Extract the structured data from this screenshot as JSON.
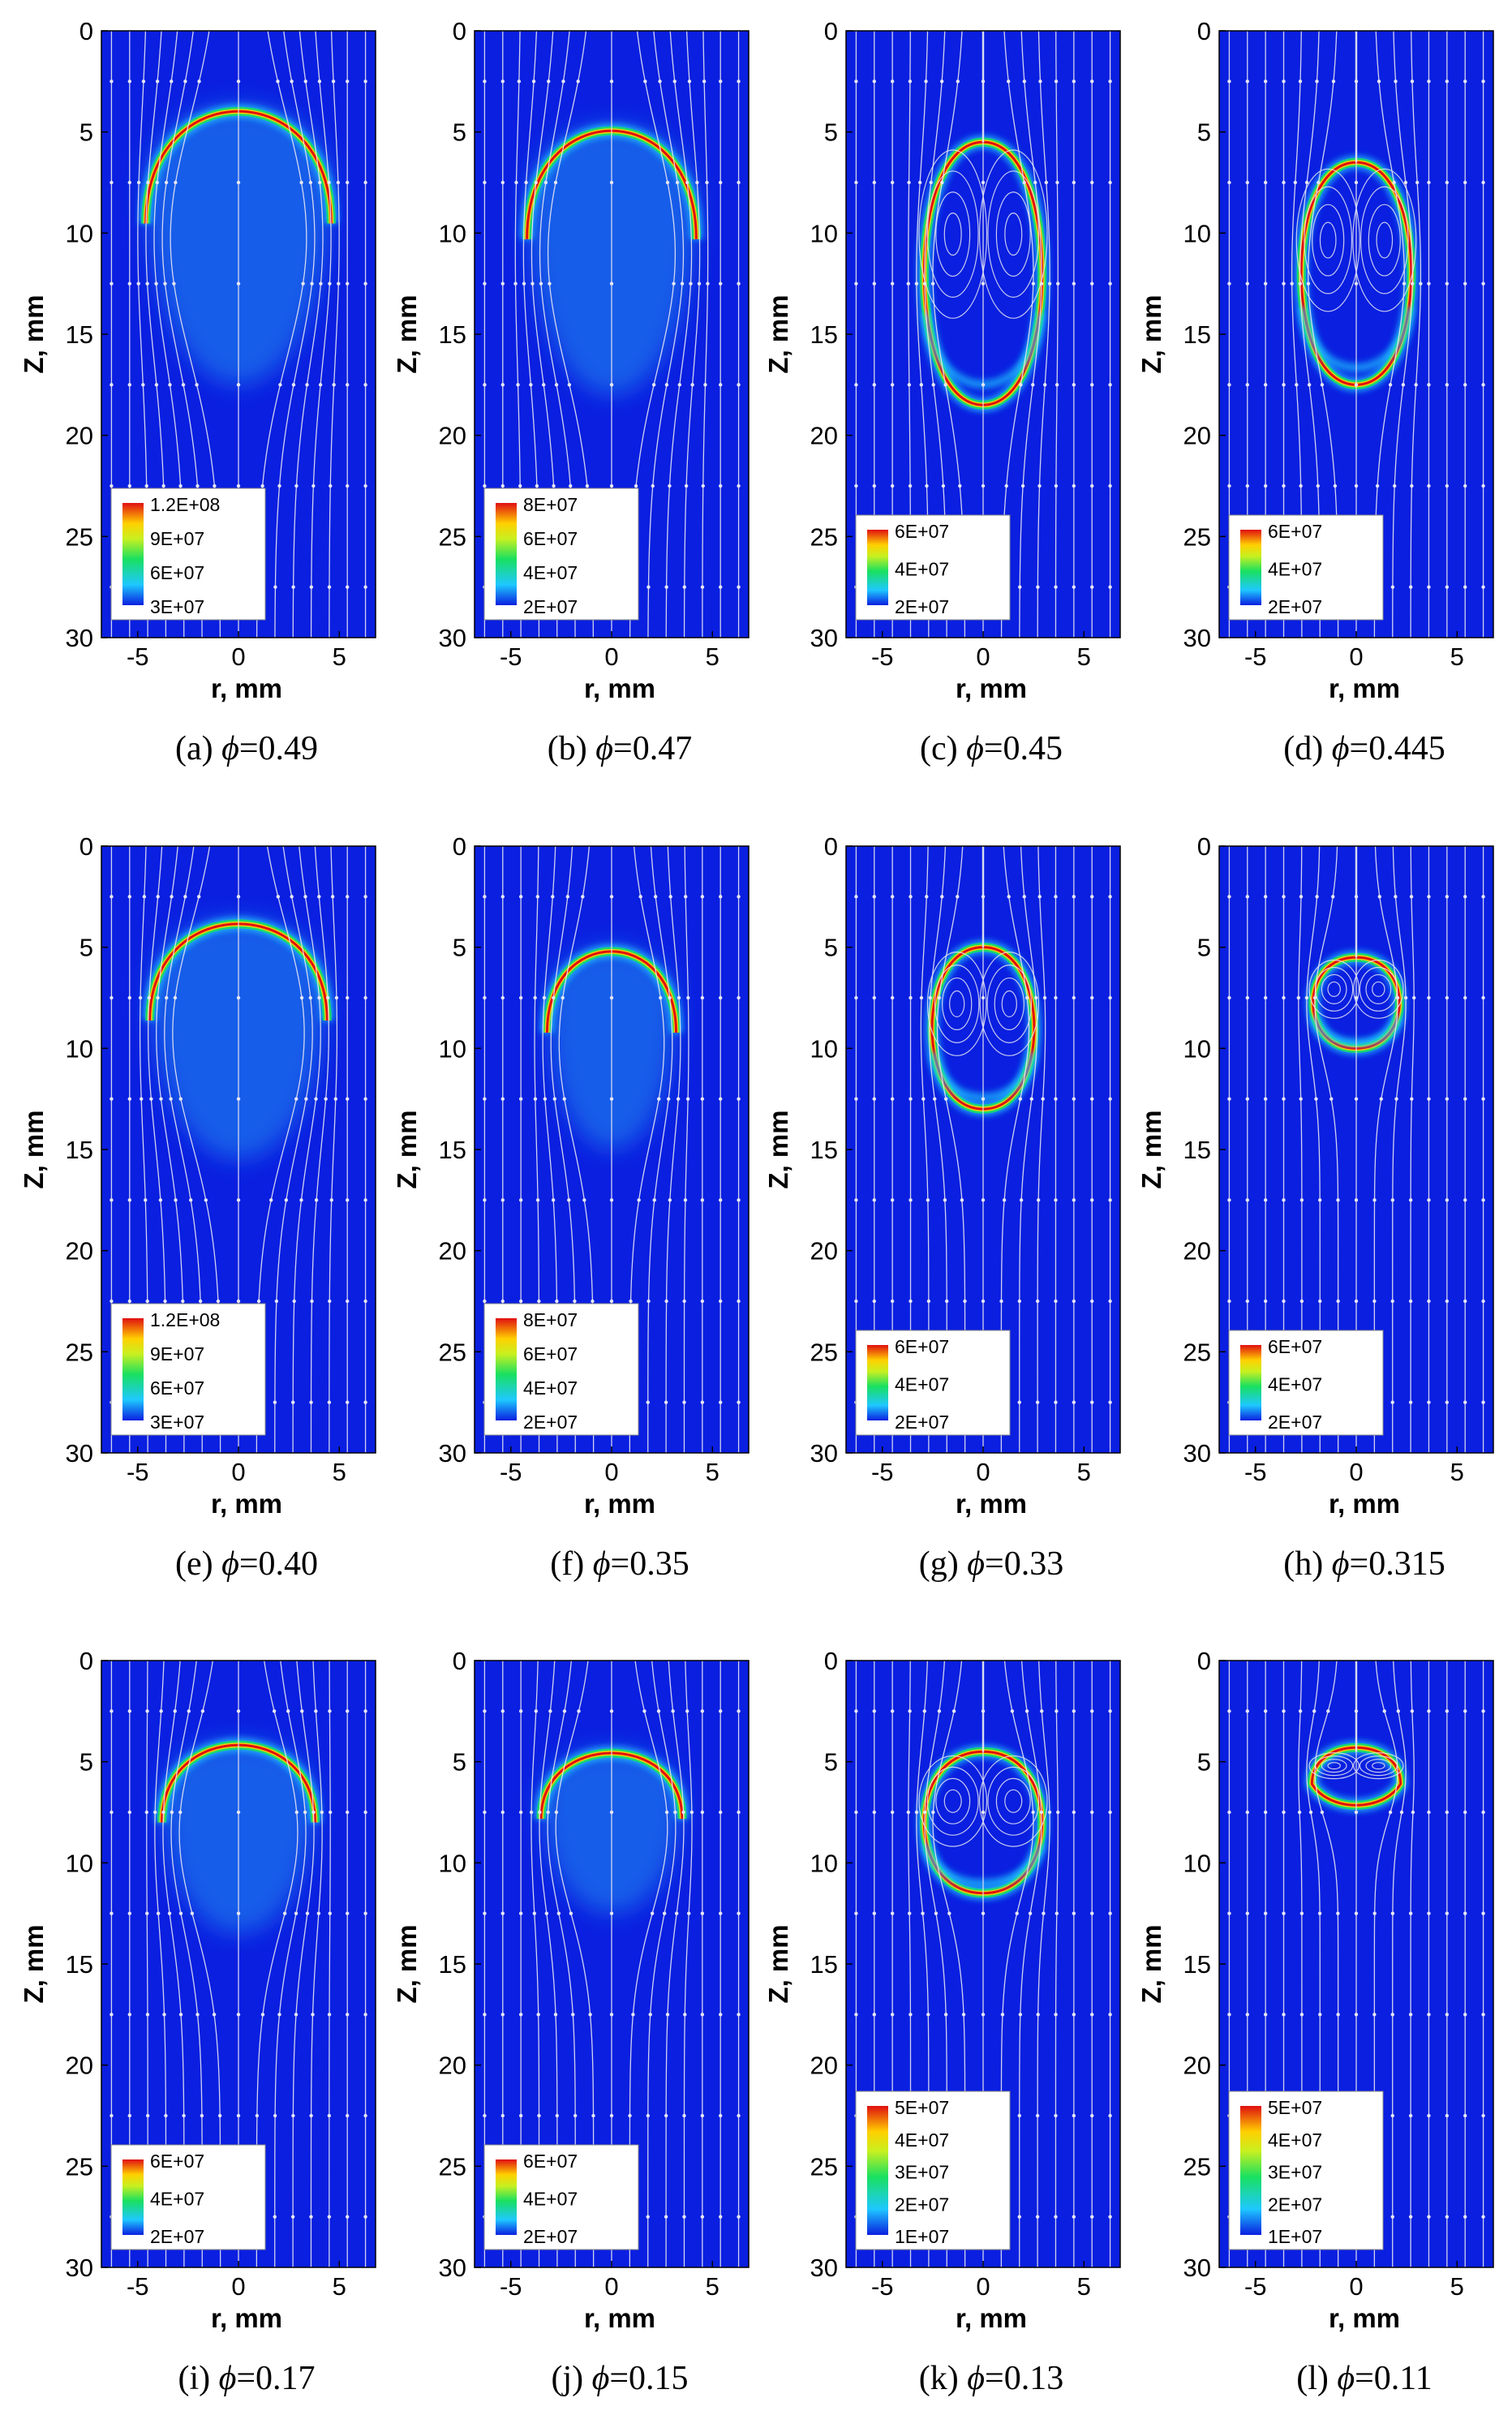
{
  "figure": {
    "axes": {
      "xlabel": "r, mm",
      "ylabel": "Z, mm",
      "xticks": [
        -5,
        0,
        5
      ],
      "yticks": [
        0,
        5,
        10,
        15,
        20,
        25,
        30
      ],
      "xlim": [
        -6.8,
        6.8
      ],
      "ylim": [
        0,
        30
      ],
      "y_inverted": true
    },
    "colors": {
      "background": "#0a1fe0",
      "streamline": "#e6e6f2",
      "legend_box": "#ffffff"
    }
  },
  "chart_data": [
    {
      "type": "heatmap",
      "id": "a",
      "caption_prefix": "(a)",
      "caption_value": "=0.49",
      "phi": 0.49,
      "legend": [
        "1.2E+08",
        "9E+07",
        "6E+07",
        "3E+07"
      ],
      "flame": {
        "cx": 0,
        "top": 3.0,
        "bottom": 17.5,
        "width": 4.6,
        "shape": "cap"
      },
      "recirculation": false
    },
    {
      "type": "heatmap",
      "id": "b",
      "caption_prefix": "(b)",
      "caption_value": "=0.47",
      "phi": 0.47,
      "legend": [
        "8E+07",
        "6E+07",
        "4E+07",
        "2E+07"
      ],
      "flame": {
        "cx": 0,
        "top": 4.0,
        "bottom": 18.0,
        "width": 4.2,
        "shape": "cap"
      },
      "recirculation": false
    },
    {
      "type": "heatmap",
      "id": "c",
      "caption_prefix": "(c)",
      "caption_value": "=0.45",
      "phi": 0.45,
      "legend": [
        "6E+07",
        "4E+07",
        "2E+07"
      ],
      "flame": {
        "cx": 0,
        "top": 5.5,
        "bottom": 18.5,
        "width": 3.0,
        "shape": "closed"
      },
      "recirculation": true
    },
    {
      "type": "heatmap",
      "id": "d",
      "caption_prefix": "(d)",
      "caption_value": "=0.445",
      "phi": 0.445,
      "legend": [
        "6E+07",
        "4E+07",
        "2E+07"
      ],
      "flame": {
        "cx": 0,
        "top": 6.5,
        "bottom": 17.5,
        "width": 2.8,
        "shape": "closed"
      },
      "recirculation": true
    },
    {
      "type": "heatmap",
      "id": "e",
      "caption_prefix": "(e)",
      "caption_value": "=0.40",
      "phi": 0.4,
      "legend": [
        "1.2E+08",
        "9E+07",
        "6E+07",
        "3E+07"
      ],
      "flame": {
        "cx": 0,
        "top": 3.0,
        "bottom": 15.5,
        "width": 4.4,
        "shape": "cap"
      },
      "recirculation": false
    },
    {
      "type": "heatmap",
      "id": "f",
      "caption_prefix": "(f)",
      "caption_value": "=0.35",
      "phi": 0.35,
      "legend": [
        "8E+07",
        "6E+07",
        "4E+07",
        "2E+07"
      ],
      "flame": {
        "cx": 0,
        "top": 4.5,
        "bottom": 15.0,
        "width": 3.2,
        "shape": "cap"
      },
      "recirculation": false
    },
    {
      "type": "heatmap",
      "id": "g",
      "caption_prefix": "(g)",
      "caption_value": "=0.33",
      "phi": 0.33,
      "legend": [
        "6E+07",
        "4E+07",
        "2E+07"
      ],
      "flame": {
        "cx": 0,
        "top": 5.0,
        "bottom": 13.0,
        "width": 2.6,
        "shape": "closed"
      },
      "recirculation": true
    },
    {
      "type": "heatmap",
      "id": "h",
      "caption_prefix": "(h)",
      "caption_value": "=0.315",
      "phi": 0.315,
      "legend": [
        "6E+07",
        "4E+07",
        "2E+07"
      ],
      "flame": {
        "cx": 0,
        "top": 5.5,
        "bottom": 10.0,
        "width": 2.2,
        "shape": "closed"
      },
      "recirculation": true
    },
    {
      "type": "heatmap",
      "id": "i",
      "caption_prefix": "(i)",
      "caption_value": "=0.17",
      "phi": 0.17,
      "legend": [
        "6E+07",
        "4E+07",
        "2E+07"
      ],
      "flame": {
        "cx": 0,
        "top": 3.5,
        "bottom": 13.5,
        "width": 3.8,
        "shape": "cap"
      },
      "recirculation": false
    },
    {
      "type": "heatmap",
      "id": "j",
      "caption_prefix": "(j)",
      "caption_value": "=0.15",
      "phi": 0.15,
      "legend": [
        "6E+07",
        "4E+07",
        "2E+07"
      ],
      "flame": {
        "cx": 0,
        "top": 4.0,
        "bottom": 12.5,
        "width": 3.5,
        "shape": "cap"
      },
      "recirculation": false
    },
    {
      "type": "heatmap",
      "id": "k",
      "caption_prefix": "(k)",
      "caption_value": "=0.13",
      "phi": 0.13,
      "legend": [
        "5E+07",
        "4E+07",
        "3E+07",
        "2E+07",
        "1E+07"
      ],
      "flame": {
        "cx": 0,
        "top": 4.5,
        "bottom": 11.5,
        "width": 3.0,
        "shape": "closed"
      },
      "recirculation": true
    },
    {
      "type": "heatmap",
      "id": "l",
      "caption_prefix": "(l)",
      "caption_value": "=0.11",
      "phi": 0.11,
      "legend": [
        "5E+07",
        "4E+07",
        "3E+07",
        "2E+07",
        "1E+07"
      ],
      "flame": {
        "cx": 0,
        "top": 4.5,
        "bottom": 6.5,
        "width": 2.2,
        "shape": "lens"
      },
      "recirculation": true
    }
  ]
}
